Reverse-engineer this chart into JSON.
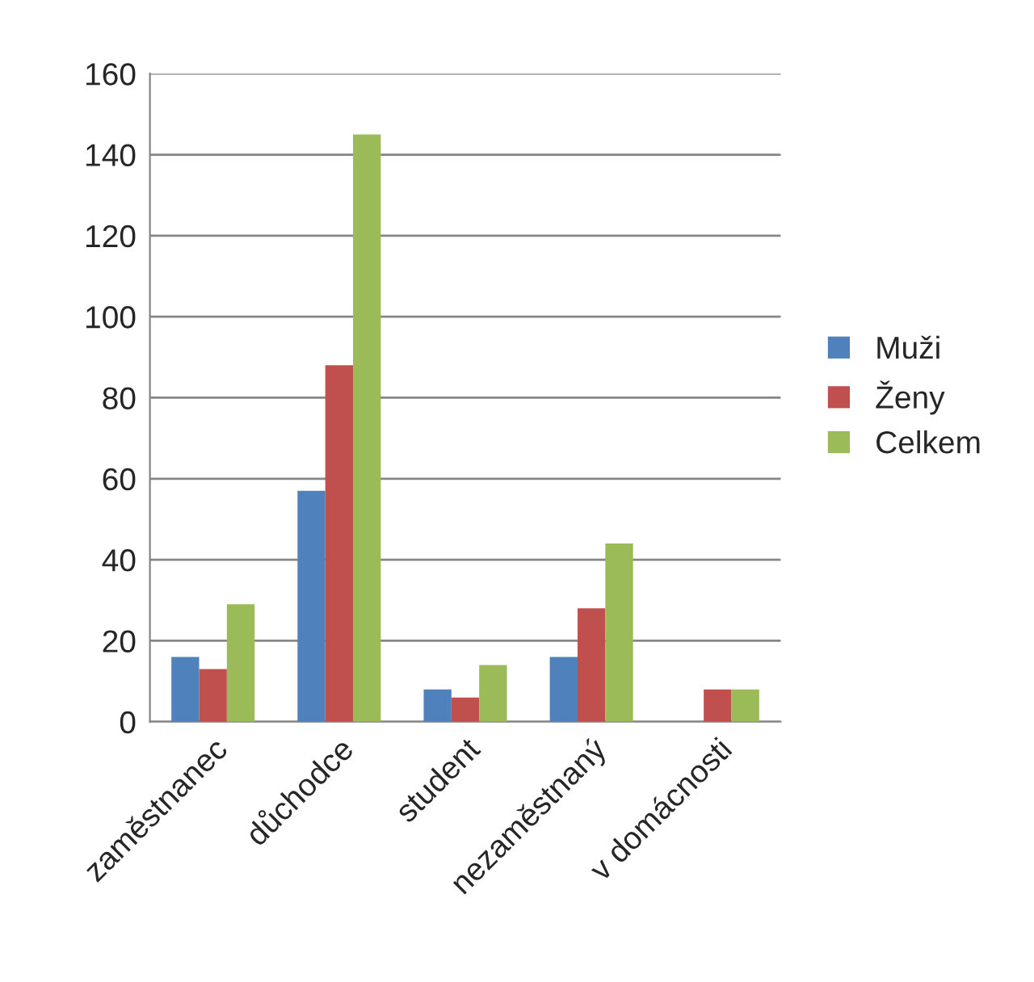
{
  "chart_data": {
    "type": "bar",
    "categories": [
      "zaměstnanec",
      "důchodce",
      "student",
      "nezaměstnaný",
      "v domácnosti"
    ],
    "series": [
      {
        "name": "Muži",
        "color": "#4f81bd",
        "values": [
          16,
          57,
          8,
          16,
          null
        ]
      },
      {
        "name": "Ženy",
        "color": "#c0504d",
        "values": [
          13,
          88,
          6,
          28,
          8
        ]
      },
      {
        "name": "Celkem",
        "color": "#9bbb59",
        "values": [
          29,
          145,
          14,
          44,
          8
        ]
      }
    ],
    "ylim": [
      0,
      160
    ],
    "yticks": [
      0,
      20,
      40,
      60,
      80,
      100,
      120,
      140,
      160
    ],
    "grid": "y",
    "legend": "right"
  }
}
